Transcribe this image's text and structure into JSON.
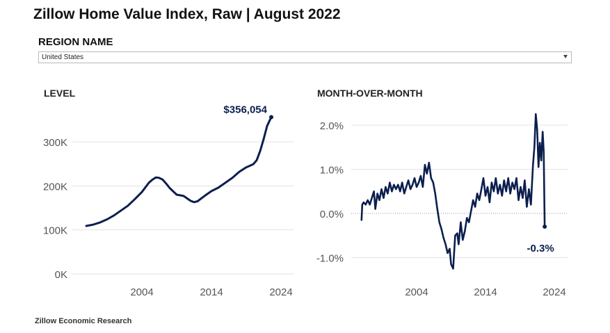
{
  "page": {
    "title": "Zillow Home Value Index, Raw | August 2022",
    "region_label": "REGION NAME",
    "region_value": "United States",
    "footer": "Zillow Economic Research",
    "line_color": "#0b1f4e",
    "grid_color": "#e3e3e3",
    "tick_color": "#555555",
    "arrow_icon": "chevron-down-icon"
  },
  "chart_data": [
    {
      "type": "line",
      "title": "LEVEL",
      "xlabel": "",
      "ylabel": "",
      "x_ticks": [
        2004,
        2014,
        2024
      ],
      "x_tick_labels": [
        "2004",
        "2014",
        "2024"
      ],
      "xlim": [
        1995.5,
        2025.5
      ],
      "ylim": [
        0,
        360000
      ],
      "y_ticks": [
        0,
        100000,
        200000,
        300000
      ],
      "y_tick_labels": [
        "0K",
        "100K",
        "200K",
        "300K"
      ],
      "grid": "horizontal",
      "end_label": "$356,054",
      "series": [
        {
          "x": [
            1996,
            1997,
            1998,
            1999,
            2000,
            2001,
            2002,
            2003,
            2004,
            2005,
            2005.5,
            2006,
            2006.5,
            2007,
            2007.5,
            2008,
            2009,
            2010,
            2011,
            2011.5,
            2012,
            2013,
            2014,
            2015,
            2016,
            2017,
            2018,
            2019,
            2020,
            2020.5,
            2021,
            2021.5,
            2022,
            2022.6
          ],
          "y": [
            109000,
            112000,
            117000,
            124000,
            133000,
            144000,
            155000,
            170000,
            186000,
            207000,
            214000,
            219000,
            218000,
            214000,
            205000,
            195000,
            180000,
            177000,
            166000,
            163000,
            165000,
            177000,
            188000,
            196000,
            207000,
            218000,
            232000,
            242000,
            249000,
            258000,
            279000,
            306000,
            336000,
            356054
          ]
        }
      ]
    },
    {
      "type": "line",
      "title": "MONTH-OVER-MONTH",
      "xlabel": "",
      "ylabel": "",
      "x_ticks": [
        2004,
        2014,
        2024
      ],
      "x_tick_labels": [
        "2004",
        "2014",
        "2024"
      ],
      "xlim": [
        1995.5,
        2025.5
      ],
      "ylim": [
        -1.3,
        2.4
      ],
      "y_ticks": [
        -1.0,
        0.0,
        1.0,
        2.0
      ],
      "y_tick_labels": [
        "-1.0%",
        "0.0%",
        "1.0%",
        "2.0%"
      ],
      "grid": "horizontal",
      "zero_line": "dotted",
      "end_label": "-0.3%",
      "series": [
        {
          "x": [
            1996,
            1996.1,
            1996.3,
            1996.6,
            1996.9,
            1997.2,
            1997.5,
            1997.8,
            1998.0,
            1998.3,
            1998.6,
            1998.9,
            1999.2,
            1999.5,
            1999.8,
            2000.1,
            2000.4,
            2000.7,
            2001.0,
            2001.3,
            2001.6,
            2001.9,
            2002.2,
            2002.5,
            2002.8,
            2003.1,
            2003.4,
            2003.7,
            2004.0,
            2004.3,
            2004.6,
            2004.9,
            2005.2,
            2005.5,
            2005.8,
            2006.1,
            2006.4,
            2006.7,
            2007.0,
            2007.3,
            2007.6,
            2007.9,
            2008.2,
            2008.5,
            2008.8,
            2009.0,
            2009.3,
            2009.6,
            2009.9,
            2010.1,
            2010.4,
            2010.7,
            2011.0,
            2011.3,
            2011.6,
            2011.9,
            2012.2,
            2012.5,
            2012.8,
            2013.1,
            2013.4,
            2013.7,
            2014.0,
            2014.3,
            2014.6,
            2014.9,
            2015.2,
            2015.5,
            2015.8,
            2016.1,
            2016.4,
            2016.7,
            2017.0,
            2017.3,
            2017.6,
            2017.9,
            2018.2,
            2018.5,
            2018.8,
            2019.1,
            2019.4,
            2019.7,
            2020.0,
            2020.3,
            2020.6,
            2020.9,
            2021.1,
            2021.3,
            2021.5,
            2021.7,
            2021.9,
            2022.1,
            2022.3,
            2022.45,
            2022.6
          ],
          "y": [
            -0.15,
            0.2,
            0.25,
            0.2,
            0.3,
            0.2,
            0.35,
            0.5,
            0.1,
            0.45,
            0.3,
            0.55,
            0.35,
            0.6,
            0.45,
            0.7,
            0.5,
            0.65,
            0.55,
            0.65,
            0.5,
            0.7,
            0.45,
            0.6,
            0.75,
            0.55,
            0.65,
            0.8,
            0.6,
            0.7,
            0.85,
            0.6,
            1.1,
            0.9,
            1.15,
            0.8,
            0.7,
            0.45,
            0.1,
            -0.2,
            -0.35,
            -0.55,
            -0.7,
            -0.9,
            -0.8,
            -1.15,
            -1.25,
            -0.5,
            -0.45,
            -0.7,
            -0.2,
            -0.6,
            -0.4,
            -0.1,
            -0.2,
            0.05,
            0.3,
            0.15,
            0.45,
            0.3,
            0.55,
            0.8,
            0.4,
            0.6,
            0.25,
            0.7,
            0.5,
            0.8,
            0.45,
            0.65,
            0.4,
            0.75,
            0.5,
            0.8,
            0.45,
            0.7,
            0.55,
            0.8,
            0.3,
            0.6,
            0.35,
            0.75,
            0.15,
            0.55,
            0.2,
            1.1,
            1.5,
            2.25,
            1.9,
            1.05,
            1.6,
            1.2,
            1.85,
            1.4,
            -0.3
          ]
        }
      ]
    }
  ]
}
